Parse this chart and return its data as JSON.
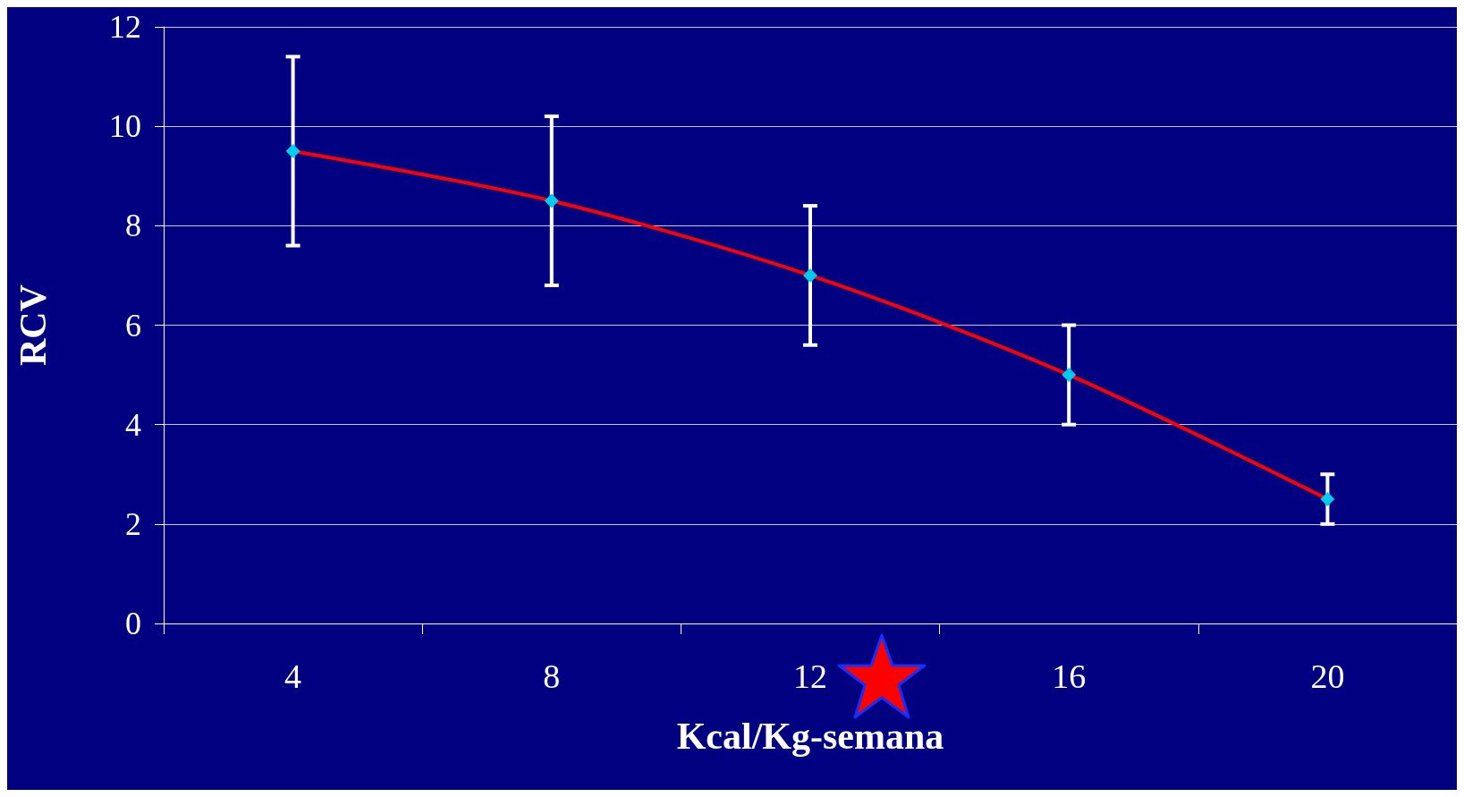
{
  "chart_data": {
    "type": "line",
    "xlabel": "Kcal/Kg-semana",
    "ylabel": "RCV",
    "categories": [
      "4",
      "8",
      "12",
      "16",
      "20"
    ],
    "series": [
      {
        "color": "#ff0000",
        "colors": [
          "#00ccee",
          "#00ccee",
          "#00ccee",
          "#00ccee",
          "#00ccee"
        ],
        "values": [
          9.5,
          8.5,
          7,
          5,
          2.5
        ],
        "errors": [
          [
            7.6,
            11.4
          ],
          [
            6.8,
            10.2
          ],
          [
            5.6,
            8.4
          ],
          [
            4,
            6
          ],
          [
            2,
            3
          ]
        ]
      }
    ],
    "ylim": [
      0,
      12
    ],
    "yticks": [
      0,
      2,
      4,
      6,
      8,
      10,
      12
    ],
    "grid": "y",
    "marker": "diamond",
    "line_style": "solid"
  }
}
